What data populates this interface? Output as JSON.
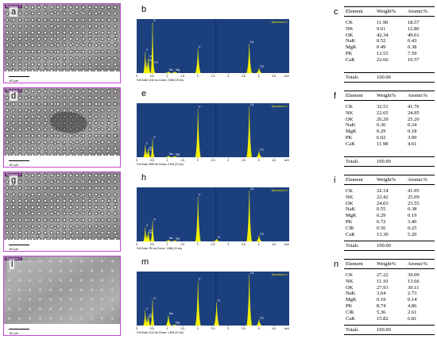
{
  "figure": {
    "sem_scale_label": "60 µm",
    "sem_tag": "Spectrum 1",
    "table_header": {
      "element": "Element",
      "weight": "Weight%",
      "atomic": "Atomic%"
    },
    "totals_label": "Totals",
    "colors": {
      "spectrum_bg": "#1c3f7e",
      "peak": "#f4f000",
      "sem_border": "#c04ad0"
    }
  },
  "panels": [
    {
      "sem_label": "a",
      "eds_label": "b",
      "table_label": "c",
      "eds_legend": "Spectrum 1",
      "eds_footer": "Full Scale 1316 cts Cursor: 2.606  (19 cts)",
      "rows": [
        {
          "el": "CK",
          "w": "11.90",
          "a": "18.57"
        },
        {
          "el": "NK",
          "w": "9.61",
          "a": "12.86"
        },
        {
          "el": "OK",
          "w": "42.34",
          "a": "49.61"
        },
        {
          "el": "NaK",
          "w": "0.52",
          "a": "0.43"
        },
        {
          "el": "MgK",
          "w": "0.49",
          "a": "0.38"
        },
        {
          "el": "PK",
          "w": "12.53",
          "a": "7.59"
        },
        {
          "el": "CaK",
          "w": "22.60",
          "a": "10.57"
        }
      ],
      "totals": "100.00"
    },
    {
      "sem_label": "d",
      "eds_label": "e",
      "table_label": "f",
      "eds_legend": "Spectrum 1",
      "eds_footer": "Full Scale 1598 cts Cursor: 2.600  (23 cts)",
      "rows": [
        {
          "el": "CK",
          "w": "32.51",
          "a": "41.76"
        },
        {
          "el": "NK",
          "w": "22.65",
          "a": "24.95"
        },
        {
          "el": "OK",
          "w": "26.20",
          "a": "25.26"
        },
        {
          "el": "NaK",
          "w": "0.36",
          "a": "0.24"
        },
        {
          "el": "MgK",
          "w": "0.29",
          "a": "0.18"
        },
        {
          "el": "PK",
          "w": "6.02",
          "a": "3.00"
        },
        {
          "el": "CaK",
          "w": "11.98",
          "a": "4.61"
        }
      ],
      "totals": "100.00"
    },
    {
      "sem_label": "g",
      "eds_label": "h",
      "table_label": "i",
      "eds_legend": "Spectrum 1",
      "eds_footer": "Full Scale 976 cts Cursor: 1.884  (22 cts)",
      "rows": [
        {
          "el": "CK",
          "w": "32.14",
          "a": "41.95"
        },
        {
          "el": "NK",
          "w": "22.42",
          "a": "25.09"
        },
        {
          "el": "OK",
          "w": "24.03",
          "a": "23.55"
        },
        {
          "el": "NaK",
          "w": "0.55",
          "a": "0.38"
        },
        {
          "el": "MgK",
          "w": "0.29",
          "a": "0.19"
        },
        {
          "el": "PK",
          "w": "6.72",
          "a": "3.40"
        },
        {
          "el": "ClK",
          "w": "0.56",
          "a": "0.25"
        },
        {
          "el": "CaK",
          "w": "13.30",
          "a": "5.20"
        }
      ],
      "totals": "100.00"
    },
    {
      "sem_label": "l",
      "eds_label": "m",
      "table_label": "n",
      "eds_legend": "Spectrum 1",
      "eds_footer": "Full Scale 1212 cts Cursor: 1.806  (37 cts)",
      "rows": [
        {
          "el": "CK",
          "w": "27.22",
          "a": "39.09"
        },
        {
          "el": "NK",
          "w": "11.10",
          "a": "13.66"
        },
        {
          "el": "OK",
          "w": "27.93",
          "a": "30.11"
        },
        {
          "el": "NaK",
          "w": "3.64",
          "a": "2.73"
        },
        {
          "el": "MgK",
          "w": "0.19",
          "a": "0.14"
        },
        {
          "el": "PK",
          "w": "8.74",
          "a": "4.86"
        },
        {
          "el": "ClK",
          "w": "5.36",
          "a": "2.61"
        },
        {
          "el": "CaK",
          "w": "15.82",
          "a": "6.81"
        }
      ],
      "totals": "100.00"
    }
  ],
  "chart_data": [
    {
      "type": "line",
      "panel": "b",
      "legend": "Spectrum 1",
      "xlim": [
        0,
        5
      ],
      "x_ticks": [
        "0",
        "0.5",
        "1",
        "1.5",
        "2",
        "2.5",
        "3",
        "3.5",
        "4",
        "4.5"
      ],
      "x_unit": "keV",
      "peaks": [
        {
          "label": "C",
          "x": 0.28,
          "rel": 0.42
        },
        {
          "label": "Ca",
          "x": 0.34,
          "rel": 0.22
        },
        {
          "label": "O",
          "x": 0.52,
          "rel": 1.0
        },
        {
          "label": "N",
          "x": 0.39,
          "rel": 0.3
        },
        {
          "label": "Ca",
          "x": 0.55,
          "rel": 0.18
        },
        {
          "label": "Na",
          "x": 1.04,
          "rel": 0.03
        },
        {
          "label": "Mg",
          "x": 1.25,
          "rel": 0.03
        },
        {
          "label": "P",
          "x": 2.01,
          "rel": 0.48
        },
        {
          "label": "Ca",
          "x": 3.69,
          "rel": 0.58
        },
        {
          "label": "Ca",
          "x": 4.01,
          "rel": 0.1
        }
      ]
    },
    {
      "type": "line",
      "panel": "e",
      "legend": "Spectrum 1",
      "xlim": [
        0,
        5
      ],
      "x_ticks": [
        "0",
        "0.5",
        "1",
        "1.5",
        "2",
        "2.5",
        "3",
        "3.5",
        "4",
        "4.5"
      ],
      "x_unit": "keV",
      "peaks": [
        {
          "label": "C",
          "x": 0.28,
          "rel": 0.24
        },
        {
          "label": "Ca",
          "x": 0.34,
          "rel": 0.12
        },
        {
          "label": "N",
          "x": 0.39,
          "rel": 0.16
        },
        {
          "label": "O",
          "x": 0.52,
          "rel": 0.36
        },
        {
          "label": "Na",
          "x": 1.04,
          "rel": 0.03
        },
        {
          "label": "Mg",
          "x": 1.25,
          "rel": 0.02
        },
        {
          "label": "P",
          "x": 2.01,
          "rel": 0.95
        },
        {
          "label": "Ca",
          "x": 3.69,
          "rel": 1.0
        },
        {
          "label": "Ca",
          "x": 4.01,
          "rel": 0.12
        }
      ]
    },
    {
      "type": "line",
      "panel": "h",
      "legend": "Spectrum 1",
      "xlim": [
        0,
        5
      ],
      "x_ticks": [
        "0",
        "0.5",
        "1",
        "1.5",
        "2",
        "2.5",
        "3",
        "3.5",
        "4",
        "4.5"
      ],
      "x_unit": "keV",
      "peaks": [
        {
          "label": "C",
          "x": 0.28,
          "rel": 0.28
        },
        {
          "label": "Ca",
          "x": 0.34,
          "rel": 0.14
        },
        {
          "label": "N",
          "x": 0.39,
          "rel": 0.18
        },
        {
          "label": "O",
          "x": 0.52,
          "rel": 0.4
        },
        {
          "label": "Na",
          "x": 1.04,
          "rel": 0.03
        },
        {
          "label": "Mg",
          "x": 1.25,
          "rel": 0.02
        },
        {
          "label": "P",
          "x": 2.01,
          "rel": 0.88
        },
        {
          "label": "Cl",
          "x": 2.62,
          "rel": 0.05
        },
        {
          "label": "Ca",
          "x": 3.69,
          "rel": 1.0
        },
        {
          "label": "Ca",
          "x": 4.01,
          "rel": 0.12
        }
      ]
    },
    {
      "type": "line",
      "panel": "m",
      "legend": "Spectrum 1",
      "xlim": [
        0,
        5
      ],
      "x_ticks": [
        "0",
        "0.5",
        "1",
        "1.5",
        "2",
        "2.5",
        "3",
        "3.5",
        "4",
        "4.5"
      ],
      "x_unit": "keV",
      "peaks": [
        {
          "label": "C",
          "x": 0.28,
          "rel": 0.3
        },
        {
          "label": "Ca",
          "x": 0.34,
          "rel": 0.14
        },
        {
          "label": "N",
          "x": 0.39,
          "rel": 0.18
        },
        {
          "label": "O",
          "x": 0.52,
          "rel": 0.5
        },
        {
          "label": "Na",
          "x": 1.04,
          "rel": 0.2
        },
        {
          "label": "Mg",
          "x": 1.25,
          "rel": 0.02
        },
        {
          "label": "P",
          "x": 2.01,
          "rel": 0.88
        },
        {
          "label": "Cl",
          "x": 2.62,
          "rel": 0.46
        },
        {
          "label": "Ca",
          "x": 3.69,
          "rel": 1.0
        },
        {
          "label": "Ca",
          "x": 4.01,
          "rel": 0.12
        }
      ]
    }
  ]
}
